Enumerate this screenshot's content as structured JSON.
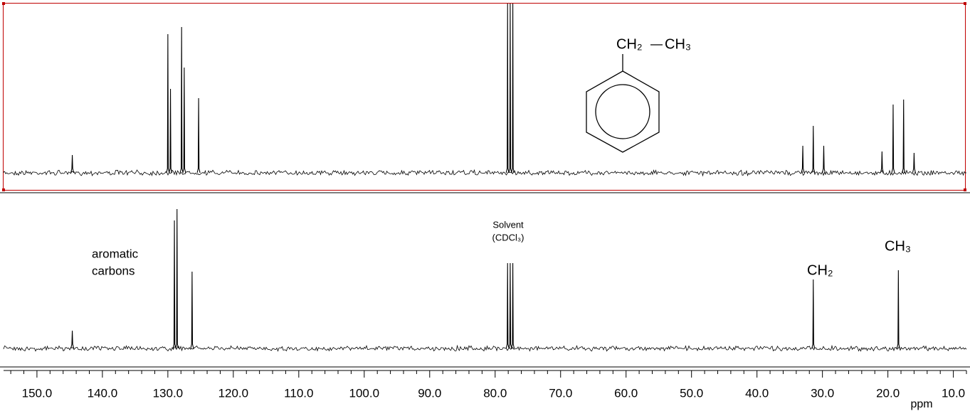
{
  "chart_data": [
    {
      "type": "spectrum",
      "structure": {
        "substituent": [
          "CH₂",
          "CH₃"
        ]
      },
      "x": [
        144.6,
        130.0,
        129.6,
        127.9,
        127.5,
        125.3,
        78.1,
        77.7,
        77.3,
        33.0,
        31.4,
        29.8,
        20.9,
        19.2,
        17.6,
        16.0
      ],
      "values": [
        25,
        195,
        118,
        205,
        148,
        105,
        238,
        238,
        238,
        38,
        66,
        38,
        30,
        96,
        103,
        28
      ],
      "xlim": [
        155.1,
        8.0
      ],
      "ylim": [
        0,
        238
      ],
      "color": "#000000"
    },
    {
      "type": "spectrum",
      "annotations": [
        "aromatic",
        "carbons",
        "Solvent",
        "(CDCl₃)",
        "CH₂",
        "CH₃"
      ],
      "x": [
        144.6,
        129.0,
        128.6,
        126.3,
        78.1,
        77.7,
        77.3,
        31.4,
        18.4
      ],
      "values": [
        25,
        180,
        196,
        108,
        120,
        120,
        120,
        97,
        110
      ],
      "xlim": [
        155.1,
        8.0
      ],
      "ylim": [
        0,
        218
      ],
      "color": "#000000",
      "xlabel": "ppm",
      "xticks": [
        {
          "value": 150,
          "label": "150.0"
        },
        {
          "value": 140,
          "label": "140.0"
        },
        {
          "value": 130,
          "label": "130.0"
        },
        {
          "value": 120,
          "label": "120.0"
        },
        {
          "value": 110,
          "label": "110.0"
        },
        {
          "value": 100,
          "label": "100.0"
        },
        {
          "value": 90,
          "label": "90.0"
        },
        {
          "value": 80,
          "label": "80.0"
        },
        {
          "value": 70,
          "label": "70.0"
        },
        {
          "value": 60,
          "label": "60.0"
        },
        {
          "value": 50,
          "label": "50.0"
        },
        {
          "value": 40,
          "label": "40.0"
        },
        {
          "value": 30,
          "label": "30.0"
        },
        {
          "value": 20,
          "label": "20.0"
        },
        {
          "value": 10,
          "label": "10.0"
        }
      ],
      "xminorticks": [
        154,
        152,
        148,
        146,
        144,
        142,
        138,
        136,
        134,
        132,
        128,
        126,
        124,
        122,
        118,
        116,
        114,
        112,
        108,
        106,
        104,
        102,
        98,
        96,
        94,
        92,
        88,
        86,
        84,
        82,
        78,
        76,
        74,
        72,
        68,
        66,
        64,
        62,
        58,
        56,
        54,
        52,
        48,
        46,
        44,
        42,
        38,
        36,
        34,
        32,
        28,
        26,
        24,
        22,
        18,
        16,
        14,
        12,
        8
      ]
    }
  ]
}
